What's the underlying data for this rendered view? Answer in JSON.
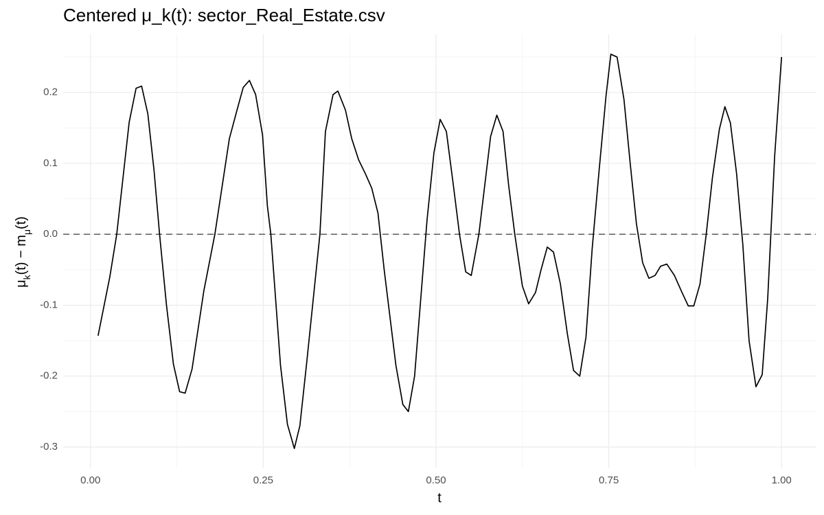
{
  "chart_data": {
    "type": "line",
    "title": "Centered μ_k(t): sector_Real_Estate.csv",
    "xlabel": "t",
    "ylabel": [
      "μ",
      "k",
      "(t) − m",
      "μ",
      "(t)"
    ],
    "x": [
      0.011,
      0.028,
      0.038,
      0.056,
      0.066,
      0.074,
      0.083,
      0.092,
      0.1,
      0.11,
      0.12,
      0.129,
      0.137,
      0.147,
      0.164,
      0.18,
      0.201,
      0.212,
      0.221,
      0.23,
      0.239,
      0.249,
      0.256,
      0.261,
      0.275,
      0.285,
      0.295,
      0.303,
      0.313,
      0.332,
      0.34,
      0.351,
      0.358,
      0.369,
      0.378,
      0.388,
      0.398,
      0.407,
      0.416,
      0.425,
      0.442,
      0.452,
      0.46,
      0.469,
      0.478,
      0.487,
      0.497,
      0.506,
      0.515,
      0.525,
      0.534,
      0.543,
      0.551,
      0.562,
      0.579,
      0.588,
      0.597,
      0.605,
      0.614,
      0.625,
      0.634,
      0.644,
      0.652,
      0.661,
      0.67,
      0.68,
      0.69,
      0.699,
      0.708,
      0.717,
      0.726,
      0.736,
      0.746,
      0.753,
      0.762,
      0.772,
      0.781,
      0.79,
      0.799,
      0.808,
      0.817,
      0.825,
      0.834,
      0.845,
      0.855,
      0.865,
      0.873,
      0.882,
      0.891,
      0.9,
      0.91,
      0.918,
      0.926,
      0.935,
      0.944,
      0.953,
      0.963,
      0.972,
      0.98,
      0.99,
      1.0
    ],
    "series": [
      {
        "color": "#000000",
        "values": [
          -0.143,
          -0.06,
          0.0,
          0.158,
          0.206,
          0.209,
          0.17,
          0.09,
          0.0,
          -0.1,
          -0.183,
          -0.222,
          -0.224,
          -0.19,
          -0.08,
          0.0,
          0.135,
          0.175,
          0.207,
          0.217,
          0.197,
          0.14,
          0.04,
          0.0,
          -0.185,
          -0.268,
          -0.302,
          -0.27,
          -0.18,
          0.0,
          0.145,
          0.197,
          0.202,
          0.175,
          0.135,
          0.105,
          0.085,
          0.065,
          0.03,
          -0.05,
          -0.185,
          -0.24,
          -0.25,
          -0.2,
          -0.09,
          0.02,
          0.115,
          0.162,
          0.145,
          0.07,
          0.0,
          -0.053,
          -0.058,
          0.0,
          0.138,
          0.168,
          0.145,
          0.07,
          0.0,
          -0.073,
          -0.098,
          -0.082,
          -0.05,
          -0.018,
          -0.025,
          -0.07,
          -0.14,
          -0.192,
          -0.2,
          -0.145,
          -0.02,
          0.09,
          0.195,
          0.254,
          0.25,
          0.19,
          0.1,
          0.015,
          -0.04,
          -0.062,
          -0.058,
          -0.045,
          -0.042,
          -0.058,
          -0.08,
          -0.101,
          -0.101,
          -0.07,
          0.0,
          0.08,
          0.148,
          0.18,
          0.157,
          0.085,
          -0.015,
          -0.15,
          -0.215,
          -0.198,
          -0.09,
          0.11,
          0.25
        ]
      }
    ],
    "xlim": [
      -0.0395,
      1.0495
    ],
    "ylim": [
      -0.33,
      0.282
    ],
    "xticks": [
      {
        "value": 0,
        "label": "0.00"
      },
      {
        "value": 0.25,
        "label": "0.25"
      },
      {
        "value": 0.5,
        "label": "0.50"
      },
      {
        "value": 0.75,
        "label": "0.75"
      },
      {
        "value": 1,
        "label": "1.00"
      }
    ],
    "yticks": [
      -0.3,
      -0.2,
      -0.1,
      {
        "value": 0,
        "label": "0.0"
      },
      0.1,
      0.2
    ],
    "x_minor_ticks": [
      0.125,
      0.375,
      0.625,
      0.875
    ],
    "y_minor_ticks": [
      -0.25,
      -0.15,
      -0.05,
      0.05,
      0.15,
      0.25
    ],
    "hline": 0,
    "grid": true
  }
}
